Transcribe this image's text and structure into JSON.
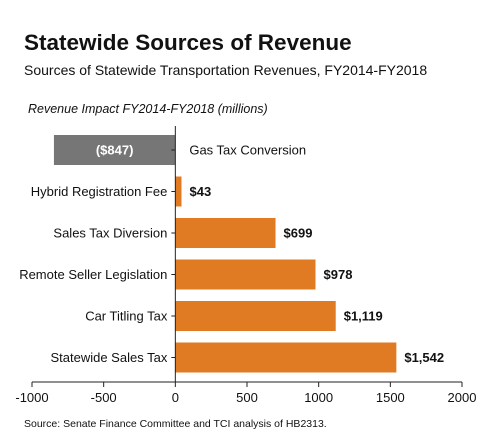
{
  "title": "Statewide Sources of Revenue",
  "subtitle": "Sources of Statewide Transportation Revenues, FY2014-FY2018",
  "unit_note": "Revenue Impact FY2014-FY2018 (millions)",
  "source": "Source: Senate Finance Committee and TCI analysis of HB2313.",
  "chart_data": {
    "type": "bar",
    "orientation": "horizontal",
    "categories": [
      "Gas Tax Conversion",
      "Hybrid Registration Fee",
      "Sales Tax Diversion",
      "Remote Seller Legislation",
      "Car Titling Tax",
      "Statewide Sales Tax"
    ],
    "values": [
      -847,
      43,
      699,
      978,
      1119,
      1542
    ],
    "value_labels": [
      "($847)",
      "$43",
      "$699",
      "$978",
      "$1,119",
      "$1,542"
    ],
    "xlim": [
      -1000,
      2000
    ],
    "x_ticks": [
      -1000,
      -500,
      0,
      500,
      1000,
      1500,
      2000
    ],
    "x_tick_labels": [
      "-1000",
      "-500",
      "0",
      "500",
      "1000",
      "1500",
      "2000"
    ],
    "colors": {
      "positive": "#e07b24",
      "negative": "#767676"
    },
    "grid": false
  }
}
